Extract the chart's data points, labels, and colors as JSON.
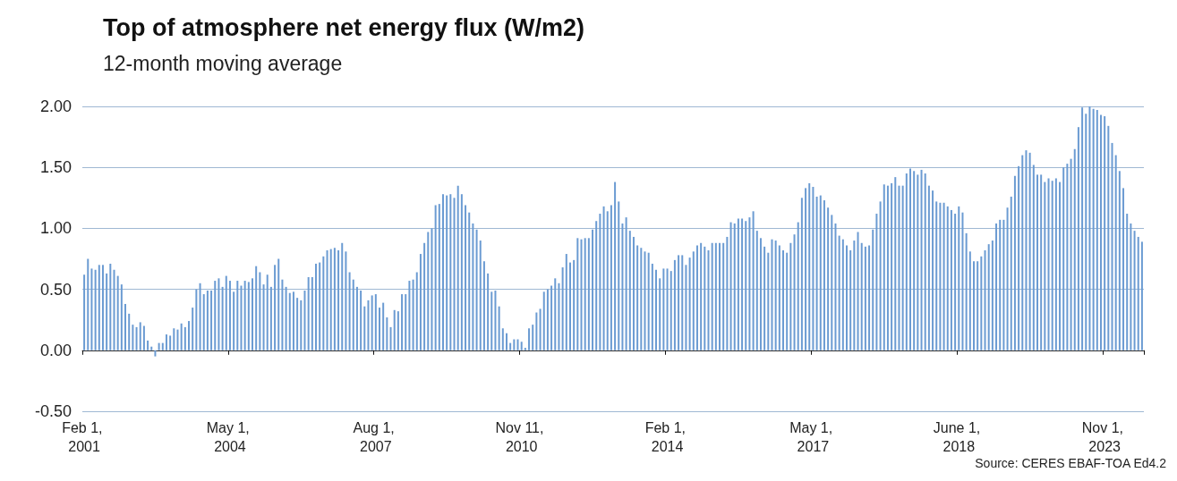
{
  "chart_data": {
    "type": "bar",
    "title": "Top of atmosphere net energy flux (W/m2)",
    "subtitle": "12-month moving average",
    "annotations": [
      "Source: CERES EBAF-TOA Ed4.2"
    ],
    "categories": [
      "Feb 1, 2001",
      null,
      null,
      null,
      null,
      null,
      null,
      null,
      null,
      null,
      null,
      null,
      null,
      null,
      null,
      null,
      null,
      null,
      null,
      null,
      null,
      null,
      null,
      null,
      null,
      null,
      null,
      null,
      null,
      null,
      null,
      null,
      null,
      null,
      null,
      null,
      null,
      null,
      null,
      "May 1, 2004",
      null,
      null,
      null,
      null,
      null,
      null,
      null,
      null,
      null,
      null,
      null,
      null,
      null,
      null,
      null,
      null,
      null,
      null,
      null,
      null,
      null,
      null,
      null,
      null,
      null,
      null,
      null,
      null,
      null,
      null,
      null,
      null,
      null,
      null,
      null,
      null,
      null,
      null,
      "Aug 1, 2007",
      null,
      null,
      null,
      null,
      null,
      null,
      null,
      null,
      null,
      null,
      null,
      null,
      null,
      null,
      null,
      null,
      null,
      null,
      null,
      null,
      null,
      null,
      null,
      null,
      null,
      null,
      null,
      null,
      null,
      null,
      null,
      null,
      null,
      null,
      null,
      null,
      null,
      null,
      "Nov 11, 2010",
      null,
      null,
      null,
      null,
      null,
      null,
      null,
      null,
      null,
      null,
      null,
      null,
      null,
      null,
      null,
      null,
      null,
      null,
      null,
      null,
      null,
      null,
      null,
      null,
      null,
      null,
      null,
      null,
      null,
      null,
      null,
      null,
      null,
      null,
      null,
      null,
      null,
      null,
      "Feb 1, 2014",
      null,
      null,
      null,
      null,
      null,
      null,
      null,
      null,
      null,
      null,
      null,
      null,
      null,
      null,
      null,
      null,
      null,
      null,
      null,
      null,
      null,
      null,
      null,
      null,
      null,
      null,
      null,
      null,
      null,
      null,
      null,
      null,
      null,
      null,
      null,
      null,
      null,
      null,
      "May 1, 2017",
      null,
      null,
      null,
      null,
      null,
      null,
      null,
      null,
      null,
      null,
      null,
      null,
      null,
      null,
      null,
      null,
      null,
      null,
      null,
      null,
      null,
      null,
      null,
      null,
      null,
      null,
      null,
      null,
      null,
      null,
      null,
      null,
      null,
      null,
      null,
      null,
      null,
      null,
      "June 1, 2018",
      null,
      null,
      null,
      null,
      null,
      null,
      null,
      null,
      null,
      null,
      null,
      null,
      null,
      null,
      null,
      null,
      null,
      null,
      null,
      null,
      null,
      null,
      null,
      null,
      null,
      null,
      null,
      null,
      null,
      null,
      null,
      null,
      null,
      null,
      null,
      null,
      null,
      null,
      "Nov 1, 2023",
      null,
      null,
      null,
      null,
      null,
      null,
      null,
      null,
      null,
      null
    ],
    "values": [
      0.62,
      0.75,
      0.67,
      0.66,
      0.7,
      0.7,
      0.63,
      0.71,
      0.66,
      0.61,
      0.54,
      0.38,
      0.3,
      0.21,
      0.19,
      0.23,
      0.2,
      0.08,
      0.03,
      -0.05,
      0.06,
      0.06,
      0.13,
      0.12,
      0.18,
      0.17,
      0.22,
      0.19,
      0.24,
      0.35,
      0.5,
      0.55,
      0.46,
      0.49,
      0.49,
      0.57,
      0.59,
      0.52,
      0.61,
      0.57,
      0.48,
      0.57,
      0.53,
      0.57,
      0.56,
      0.59,
      0.69,
      0.64,
      0.54,
      0.62,
      0.52,
      0.7,
      0.75,
      0.58,
      0.52,
      0.47,
      0.48,
      0.43,
      0.41,
      0.49,
      0.6,
      0.6,
      0.71,
      0.72,
      0.77,
      0.82,
      0.83,
      0.84,
      0.82,
      0.88,
      0.81,
      0.64,
      0.58,
      0.52,
      0.49,
      0.36,
      0.41,
      0.45,
      0.46,
      0.35,
      0.39,
      0.27,
      0.19,
      0.33,
      0.32,
      0.46,
      0.46,
      0.57,
      0.58,
      0.64,
      0.79,
      0.88,
      0.97,
      1.0,
      1.19,
      1.2,
      1.28,
      1.27,
      1.28,
      1.25,
      1.35,
      1.28,
      1.19,
      1.13,
      1.04,
      0.99,
      0.9,
      0.73,
      0.63,
      0.48,
      0.49,
      0.36,
      0.18,
      0.14,
      0.06,
      0.09,
      0.09,
      0.07,
      0.02,
      0.18,
      0.21,
      0.31,
      0.34,
      0.48,
      0.5,
      0.53,
      0.59,
      0.55,
      0.68,
      0.79,
      0.72,
      0.74,
      0.92,
      0.91,
      0.92,
      0.92,
      0.99,
      1.06,
      1.12,
      1.18,
      1.14,
      1.19,
      1.38,
      1.22,
      1.04,
      1.09,
      0.98,
      0.93,
      0.86,
      0.84,
      0.81,
      0.8,
      0.71,
      0.66,
      0.59,
      0.67,
      0.67,
      0.65,
      0.74,
      0.78,
      0.78,
      0.7,
      0.76,
      0.81,
      0.86,
      0.88,
      0.85,
      0.82,
      0.88,
      0.88,
      0.88,
      0.88,
      0.93,
      1.05,
      1.04,
      1.08,
      1.08,
      1.06,
      1.09,
      1.14,
      0.98,
      0.92,
      0.85,
      0.8,
      0.91,
      0.9,
      0.86,
      0.82,
      0.8,
      0.88,
      0.95,
      1.05,
      1.25,
      1.33,
      1.37,
      1.34,
      1.26,
      1.27,
      1.23,
      1.17,
      1.11,
      1.04,
      0.94,
      0.91,
      0.86,
      0.82,
      0.9,
      0.97,
      0.88,
      0.85,
      0.86,
      0.99,
      1.12,
      1.22,
      1.36,
      1.35,
      1.37,
      1.42,
      1.35,
      1.35,
      1.45,
      1.49,
      1.47,
      1.44,
      1.48,
      1.45,
      1.35,
      1.31,
      1.22,
      1.21,
      1.21,
      1.18,
      1.15,
      1.12,
      1.18,
      1.13,
      0.96,
      0.81,
      0.73,
      0.73,
      0.77,
      0.82,
      0.87,
      0.9,
      1.04,
      1.07,
      1.07,
      1.17,
      1.26,
      1.43,
      1.51,
      1.6,
      1.64,
      1.62,
      1.52,
      1.44,
      1.44,
      1.38,
      1.41,
      1.39,
      1.41,
      1.38,
      1.5,
      1.53,
      1.57,
      1.65,
      1.83,
      1.99,
      1.94,
      2.0,
      1.98,
      1.97,
      1.93,
      1.92,
      1.84,
      1.7,
      1.6,
      1.47,
      1.33,
      1.12,
      1.04,
      0.98,
      0.93,
      0.89
    ],
    "color": "#6b9bd2",
    "ylim": [
      -0.5,
      2
    ],
    "yticks": [
      {
        "value": -0.5,
        "label": "-0.50"
      },
      {
        "value": 0,
        "label": "0.00"
      },
      {
        "value": 0.5,
        "label": "0.50"
      },
      {
        "value": 1,
        "label": "1.00"
      },
      {
        "value": 1.5,
        "label": "1.50"
      },
      {
        "value": 2,
        "label": "2.00"
      }
    ],
    "grid": "y"
  }
}
